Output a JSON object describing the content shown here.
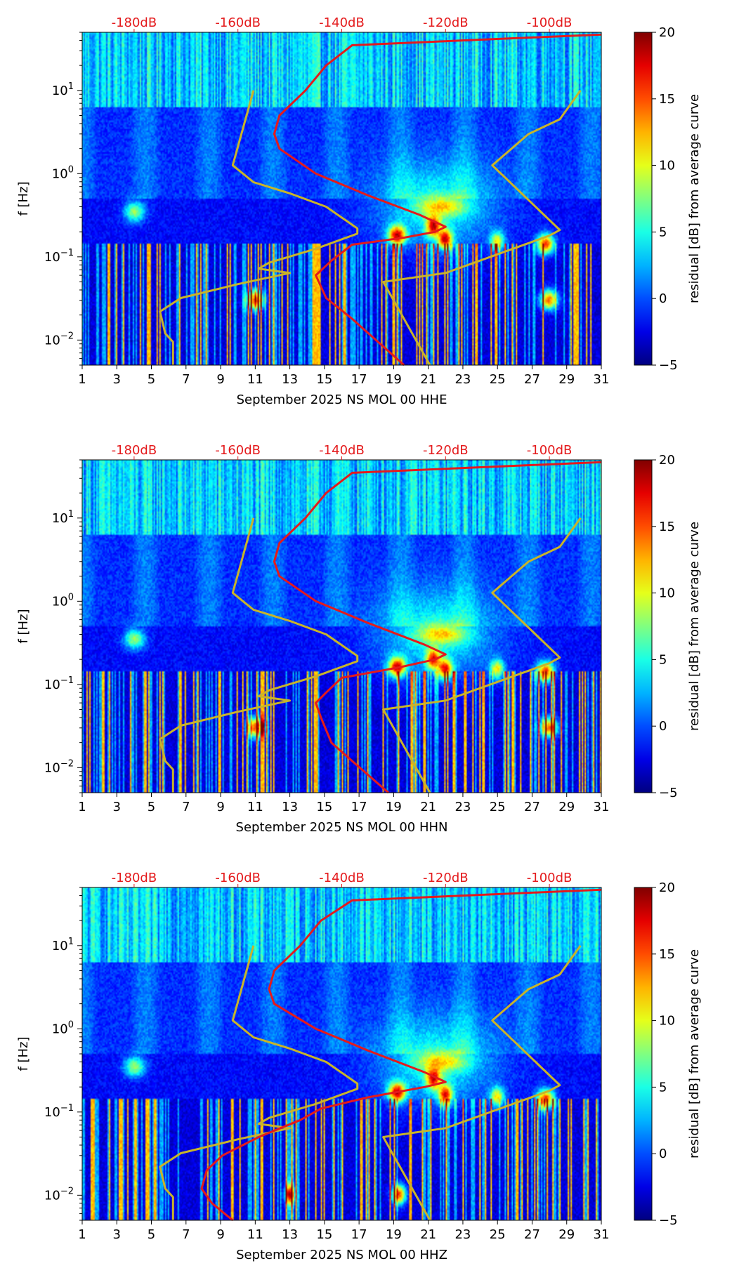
{
  "chart_data": [
    {
      "type": "heatmap",
      "title": "",
      "xlabel": "September 2025 NS MOL 00 HHE",
      "ylabel": "f [Hz]",
      "x_ticks": [
        "1",
        "3",
        "5",
        "7",
        "9",
        "11",
        "13",
        "15",
        "17",
        "19",
        "21",
        "23",
        "25",
        "27",
        "29",
        "31"
      ],
      "xlim": [
        1,
        31
      ],
      "y_ticks": [
        {
          "value": 0.01,
          "base": "10",
          "exp": "−2"
        },
        {
          "value": 0.1,
          "base": "10",
          "exp": "−1"
        },
        {
          "value": 1,
          "base": "10",
          "exp": "0"
        },
        {
          "value": 10,
          "base": "10",
          "exp": "1"
        }
      ],
      "ylim": [
        0.005,
        50
      ],
      "top_axis": {
        "labels": [
          "-180dB",
          "-160dB",
          "-140dB",
          "-120dB",
          "-100dB"
        ],
        "values": [
          -180,
          -160,
          -140,
          -120,
          -100
        ],
        "range": [
          -190,
          -90
        ],
        "color": "#e41a1c"
      },
      "colorbar": {
        "label": "residual [dB] from average curve",
        "ticks": [
          -5,
          0,
          5,
          10,
          15,
          20
        ],
        "range": [
          -5,
          20
        ]
      },
      "noise_model_curve": {
        "color": "#c8b42a",
        "points": [
          [
            -172.5,
            0.005
          ],
          [
            -172.5,
            0.0095
          ],
          [
            -174,
            0.012
          ],
          [
            -175,
            0.022
          ],
          [
            -171,
            0.032
          ],
          [
            -160,
            0.047
          ],
          [
            -150,
            0.064
          ],
          [
            -156,
            0.072
          ],
          [
            -154,
            0.085
          ],
          [
            -145,
            0.125
          ],
          [
            -137,
            0.19
          ],
          [
            -137,
            0.22
          ],
          [
            -143,
            0.4
          ],
          [
            -150,
            0.58
          ],
          [
            -157,
            0.79
          ],
          [
            -161,
            1.26
          ],
          [
            -157,
            10
          ]
        ]
      },
      "noise_model_curve_2": {
        "color": "#c8b42a",
        "points": [
          [
            -123,
            0.005
          ],
          [
            -132,
            0.05
          ],
          [
            -120,
            0.064
          ],
          [
            -100,
            0.18
          ],
          [
            -98,
            0.21
          ],
          [
            -111,
            1.26
          ],
          [
            -104,
            3.0
          ],
          [
            -98,
            4.5
          ],
          [
            -94,
            10
          ]
        ]
      },
      "average_curve": {
        "color": "#e41a1c",
        "points": [
          [
            -128,
            0.005
          ],
          [
            -138,
            0.018
          ],
          [
            -143,
            0.032
          ],
          [
            -145,
            0.06
          ],
          [
            -142,
            0.09
          ],
          [
            -138,
            0.14
          ],
          [
            -128,
            0.17
          ],
          [
            -122,
            0.2
          ],
          [
            -120,
            0.23
          ],
          [
            -125,
            0.32
          ],
          [
            -135,
            0.55
          ],
          [
            -145,
            1.0
          ],
          [
            -152,
            2.0
          ],
          [
            -153,
            3.0
          ],
          [
            -152,
            5.0
          ],
          [
            -147,
            10
          ],
          [
            -143,
            20
          ],
          [
            -138,
            35
          ],
          [
            -90,
            47
          ]
        ]
      },
      "events": [
        {
          "day": 4,
          "f": 0.35,
          "level": 10,
          "spread": 0.6
        },
        {
          "day": 19.2,
          "f": 0.18,
          "level": 18,
          "spread": 0.5
        },
        {
          "day": 21.3,
          "f": 0.23,
          "level": 16,
          "spread": 0.4
        },
        {
          "day": 22,
          "f": 0.16,
          "level": 17,
          "spread": 0.4
        },
        {
          "day": 27.8,
          "f": 0.14,
          "level": 18,
          "spread": 0.5
        },
        {
          "day": 25,
          "f": 0.15,
          "level": 12,
          "spread": 0.4
        },
        {
          "day": 11,
          "f": 0.03,
          "level": 18,
          "spread": 0.5
        },
        {
          "day": 28,
          "f": 0.03,
          "level": 17,
          "spread": 0.5
        },
        {
          "day": 21.8,
          "f": 0.4,
          "level": 8,
          "spread": 1.5
        }
      ]
    },
    {
      "type": "heatmap",
      "title": "",
      "xlabel": "September 2025 NS MOL 00 HHN",
      "ylabel": "f [Hz]",
      "x_ticks": [
        "1",
        "3",
        "5",
        "7",
        "9",
        "11",
        "13",
        "15",
        "17",
        "19",
        "21",
        "23",
        "25",
        "27",
        "29",
        "31"
      ],
      "xlim": [
        1,
        31
      ],
      "y_ticks": [
        {
          "value": 0.01,
          "base": "10",
          "exp": "−2"
        },
        {
          "value": 0.1,
          "base": "10",
          "exp": "−1"
        },
        {
          "value": 1,
          "base": "10",
          "exp": "0"
        },
        {
          "value": 10,
          "base": "10",
          "exp": "1"
        }
      ],
      "ylim": [
        0.005,
        50
      ],
      "top_axis": {
        "labels": [
          "-180dB",
          "-160dB",
          "-140dB",
          "-120dB",
          "-100dB"
        ],
        "values": [
          -180,
          -160,
          -140,
          -120,
          -100
        ],
        "range": [
          -190,
          -90
        ],
        "color": "#e41a1c"
      },
      "colorbar": {
        "label": "residual [dB] from average curve",
        "ticks": [
          -5,
          0,
          5,
          10,
          15,
          20
        ],
        "range": [
          -5,
          20
        ]
      },
      "noise_model_curve": {
        "color": "#c8b42a",
        "points": [
          [
            -172.5,
            0.005
          ],
          [
            -172.5,
            0.0095
          ],
          [
            -174,
            0.012
          ],
          [
            -175,
            0.022
          ],
          [
            -171,
            0.032
          ],
          [
            -160,
            0.047
          ],
          [
            -150,
            0.064
          ],
          [
            -156,
            0.072
          ],
          [
            -154,
            0.085
          ],
          [
            -145,
            0.125
          ],
          [
            -137,
            0.19
          ],
          [
            -137,
            0.22
          ],
          [
            -143,
            0.4
          ],
          [
            -150,
            0.58
          ],
          [
            -157,
            0.79
          ],
          [
            -161,
            1.26
          ],
          [
            -157,
            10
          ]
        ]
      },
      "noise_model_curve_2": {
        "color": "#c8b42a",
        "points": [
          [
            -123,
            0.005
          ],
          [
            -132,
            0.05
          ],
          [
            -120,
            0.064
          ],
          [
            -100,
            0.18
          ],
          [
            -98,
            0.21
          ],
          [
            -111,
            1.26
          ],
          [
            -104,
            3.0
          ],
          [
            -98,
            4.5
          ],
          [
            -94,
            10
          ]
        ]
      },
      "average_curve": {
        "color": "#e41a1c",
        "points": [
          [
            -131,
            0.005
          ],
          [
            -138,
            0.012
          ],
          [
            -142,
            0.02
          ],
          [
            -144,
            0.04
          ],
          [
            -145,
            0.06
          ],
          [
            -143,
            0.08
          ],
          [
            -140,
            0.12
          ],
          [
            -129,
            0.16
          ],
          [
            -122,
            0.2
          ],
          [
            -120,
            0.23
          ],
          [
            -124,
            0.3
          ],
          [
            -135,
            0.55
          ],
          [
            -145,
            1.0
          ],
          [
            -152,
            2.0
          ],
          [
            -153,
            3.0
          ],
          [
            -152,
            5.0
          ],
          [
            -147,
            10
          ],
          [
            -143,
            20
          ],
          [
            -138,
            35
          ],
          [
            -90,
            47
          ]
        ]
      },
      "events": [
        {
          "day": 4,
          "f": 0.35,
          "level": 10,
          "spread": 0.6
        },
        {
          "day": 19.2,
          "f": 0.16,
          "level": 18,
          "spread": 0.5
        },
        {
          "day": 21.3,
          "f": 0.2,
          "level": 15,
          "spread": 0.4
        },
        {
          "day": 22,
          "f": 0.15,
          "level": 16,
          "spread": 0.4
        },
        {
          "day": 27.8,
          "f": 0.14,
          "level": 18,
          "spread": 0.5
        },
        {
          "day": 25,
          "f": 0.15,
          "level": 12,
          "spread": 0.4
        },
        {
          "day": 11,
          "f": 0.03,
          "level": 18,
          "spread": 0.5
        },
        {
          "day": 28,
          "f": 0.03,
          "level": 17,
          "spread": 0.5
        },
        {
          "day": 21.8,
          "f": 0.4,
          "level": 8,
          "spread": 1.5
        }
      ]
    },
    {
      "type": "heatmap",
      "title": "",
      "xlabel": "September 2025 NS MOL 00 HHZ",
      "ylabel": "f [Hz]",
      "x_ticks": [
        "1",
        "3",
        "5",
        "7",
        "9",
        "11",
        "13",
        "15",
        "17",
        "19",
        "21",
        "23",
        "25",
        "27",
        "29",
        "31"
      ],
      "xlim": [
        1,
        31
      ],
      "y_ticks": [
        {
          "value": 0.01,
          "base": "10",
          "exp": "−2"
        },
        {
          "value": 0.1,
          "base": "10",
          "exp": "−1"
        },
        {
          "value": 1,
          "base": "10",
          "exp": "0"
        },
        {
          "value": 10,
          "base": "10",
          "exp": "1"
        }
      ],
      "ylim": [
        0.005,
        50
      ],
      "top_axis": {
        "labels": [
          "-180dB",
          "-160dB",
          "-140dB",
          "-120dB",
          "-100dB"
        ],
        "values": [
          -180,
          -160,
          -140,
          -120,
          -100
        ],
        "range": [
          -190,
          -90
        ],
        "color": "#e41a1c"
      },
      "colorbar": {
        "label": "residual [dB] from average curve",
        "ticks": [
          -5,
          0,
          5,
          10,
          15,
          20
        ],
        "range": [
          -5,
          20
        ]
      },
      "noise_model_curve": {
        "color": "#c8b42a",
        "points": [
          [
            -172.5,
            0.005
          ],
          [
            -172.5,
            0.0095
          ],
          [
            -174,
            0.012
          ],
          [
            -175,
            0.022
          ],
          [
            -171,
            0.032
          ],
          [
            -160,
            0.047
          ],
          [
            -150,
            0.064
          ],
          [
            -156,
            0.072
          ],
          [
            -154,
            0.085
          ],
          [
            -145,
            0.125
          ],
          [
            -137,
            0.19
          ],
          [
            -137,
            0.22
          ],
          [
            -143,
            0.4
          ],
          [
            -150,
            0.58
          ],
          [
            -157,
            0.79
          ],
          [
            -161,
            1.26
          ],
          [
            -157,
            10
          ]
        ]
      },
      "noise_model_curve_2": {
        "color": "#c8b42a",
        "points": [
          [
            -123,
            0.005
          ],
          [
            -132,
            0.05
          ],
          [
            -120,
            0.064
          ],
          [
            -100,
            0.18
          ],
          [
            -98,
            0.21
          ],
          [
            -111,
            1.26
          ],
          [
            -104,
            3.0
          ],
          [
            -98,
            4.5
          ],
          [
            -94,
            10
          ]
        ]
      },
      "average_curve": {
        "color": "#e41a1c",
        "points": [
          [
            -161,
            0.005
          ],
          [
            -165,
            0.008
          ],
          [
            -167,
            0.012
          ],
          [
            -166,
            0.02
          ],
          [
            -163,
            0.03
          ],
          [
            -156,
            0.05
          ],
          [
            -148,
            0.08
          ],
          [
            -144,
            0.11
          ],
          [
            -135,
            0.15
          ],
          [
            -124,
            0.2
          ],
          [
            -120,
            0.23
          ],
          [
            -124,
            0.3
          ],
          [
            -135,
            0.55
          ],
          [
            -145,
            1.0
          ],
          [
            -153,
            2.0
          ],
          [
            -154,
            3.0
          ],
          [
            -153,
            5.0
          ],
          [
            -148,
            10
          ],
          [
            -144,
            20
          ],
          [
            -138,
            35
          ],
          [
            -90,
            47
          ]
        ]
      },
      "events": [
        {
          "day": 4,
          "f": 0.35,
          "level": 10,
          "spread": 0.6
        },
        {
          "day": 19.2,
          "f": 0.17,
          "level": 18,
          "spread": 0.5
        },
        {
          "day": 21.3,
          "f": 0.25,
          "level": 15,
          "spread": 0.4
        },
        {
          "day": 22,
          "f": 0.16,
          "level": 16,
          "spread": 0.4
        },
        {
          "day": 27.8,
          "f": 0.14,
          "level": 18,
          "spread": 0.5
        },
        {
          "day": 25,
          "f": 0.15,
          "level": 12,
          "spread": 0.4
        },
        {
          "day": 13,
          "f": 0.01,
          "level": 17,
          "spread": 0.3
        },
        {
          "day": 19.3,
          "f": 0.01,
          "level": 18,
          "spread": 0.4
        },
        {
          "day": 21.8,
          "f": 0.4,
          "level": 8,
          "spread": 1.5
        }
      ]
    }
  ]
}
